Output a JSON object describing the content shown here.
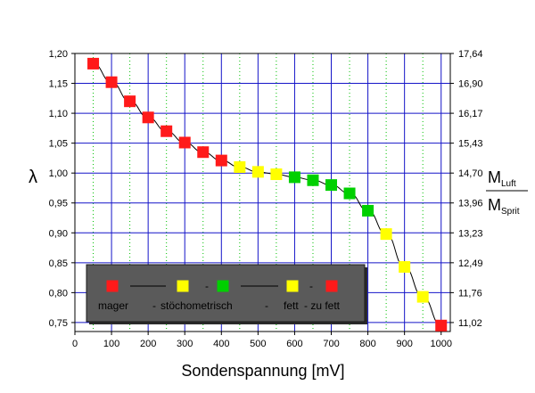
{
  "chart_data": {
    "type": "scatter",
    "xlabel": "Sondenspannung [mV]",
    "ylabel": "λ",
    "y2label": {
      "numerator": "M",
      "numerator_sub": "Luft",
      "denominator": "M",
      "denominator_sub": "Sprit"
    },
    "xlim": [
      0,
      1025
    ],
    "ylim": [
      0.735,
      1.2
    ],
    "x_ticks": [
      "0",
      "100",
      "200",
      "300",
      "400",
      "500",
      "600",
      "700",
      "800",
      "900",
      "1000"
    ],
    "y_ticks": [
      "0,75",
      "0,80",
      "0,85",
      "0,90",
      "0,95",
      "1,00",
      "1,05",
      "1,10",
      "1,15",
      "1,20"
    ],
    "y2_ticks": [
      "11,02",
      "11,76",
      "12,49",
      "13,23",
      "13,96",
      "14,70",
      "15,43",
      "16,17",
      "16,90",
      "17,64"
    ],
    "grid": true,
    "colors": {
      "red": "#ff1a1a",
      "yellow": "#ffff00",
      "green": "#00d000",
      "major_grid": "#1414c8",
      "minor_grid": "#00c000",
      "line": "#000000"
    },
    "points": [
      {
        "x": 50,
        "y": 1.183,
        "zone": "red"
      },
      {
        "x": 100,
        "y": 1.152,
        "zone": "red"
      },
      {
        "x": 150,
        "y": 1.12,
        "zone": "red"
      },
      {
        "x": 200,
        "y": 1.093,
        "zone": "red"
      },
      {
        "x": 250,
        "y": 1.07,
        "zone": "red"
      },
      {
        "x": 300,
        "y": 1.051,
        "zone": "red"
      },
      {
        "x": 350,
        "y": 1.035,
        "zone": "red"
      },
      {
        "x": 400,
        "y": 1.021,
        "zone": "red"
      },
      {
        "x": 450,
        "y": 1.01,
        "zone": "yellow"
      },
      {
        "x": 500,
        "y": 1.002,
        "zone": "yellow"
      },
      {
        "x": 550,
        "y": 0.998,
        "zone": "yellow"
      },
      {
        "x": 600,
        "y": 0.993,
        "zone": "green"
      },
      {
        "x": 650,
        "y": 0.988,
        "zone": "green"
      },
      {
        "x": 700,
        "y": 0.98,
        "zone": "green"
      },
      {
        "x": 750,
        "y": 0.966,
        "zone": "green"
      },
      {
        "x": 800,
        "y": 0.937,
        "zone": "green"
      },
      {
        "x": 850,
        "y": 0.898,
        "zone": "yellow"
      },
      {
        "x": 900,
        "y": 0.843,
        "zone": "yellow"
      },
      {
        "x": 950,
        "y": 0.793,
        "zone": "yellow"
      },
      {
        "x": 1000,
        "y": 0.745,
        "zone": "red"
      }
    ],
    "legend": {
      "symbols": [
        {
          "type": "square",
          "color": "red"
        },
        {
          "type": "line"
        },
        {
          "type": "square",
          "color": "yellow"
        },
        {
          "type": "dash",
          "text": "-"
        },
        {
          "type": "square",
          "color": "green"
        },
        {
          "type": "line"
        },
        {
          "type": "square",
          "color": "yellow"
        },
        {
          "type": "dash",
          "text": "-"
        },
        {
          "type": "square",
          "color": "red"
        }
      ],
      "labels": [
        "mager",
        "-",
        "stöchometrisch",
        "-",
        "fett",
        "- zu fett"
      ]
    }
  }
}
